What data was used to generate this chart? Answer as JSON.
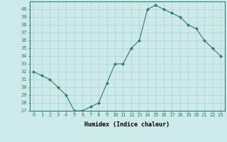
{
  "x": [
    0,
    1,
    2,
    3,
    4,
    5,
    6,
    7,
    8,
    9,
    10,
    11,
    12,
    13,
    14,
    15,
    16,
    17,
    18,
    19,
    20,
    21,
    22,
    23
  ],
  "y": [
    32,
    31.5,
    31,
    30,
    29,
    27,
    27,
    27.5,
    28,
    30.5,
    33,
    33,
    35,
    36,
    40,
    40.5,
    40,
    39.5,
    39,
    38,
    37.5,
    36,
    35,
    34
  ],
  "xlabel": "Humidex (Indice chaleur)",
  "ylim": [
    27,
    41
  ],
  "xlim": [
    -0.5,
    23.5
  ],
  "yticks": [
    27,
    28,
    29,
    30,
    31,
    32,
    33,
    34,
    35,
    36,
    37,
    38,
    39,
    40
  ],
  "xticks": [
    0,
    1,
    2,
    3,
    4,
    5,
    6,
    7,
    8,
    9,
    10,
    11,
    12,
    13,
    14,
    15,
    16,
    17,
    18,
    19,
    20,
    21,
    22,
    23
  ],
  "line_color": "#2e7d6e",
  "marker": "D",
  "marker_size": 2.0,
  "linewidth": 0.8,
  "bg_color": "#cceae7",
  "grid_color": "#aed4d0",
  "tick_fontsize": 5.0,
  "xlabel_fontsize": 6.0
}
